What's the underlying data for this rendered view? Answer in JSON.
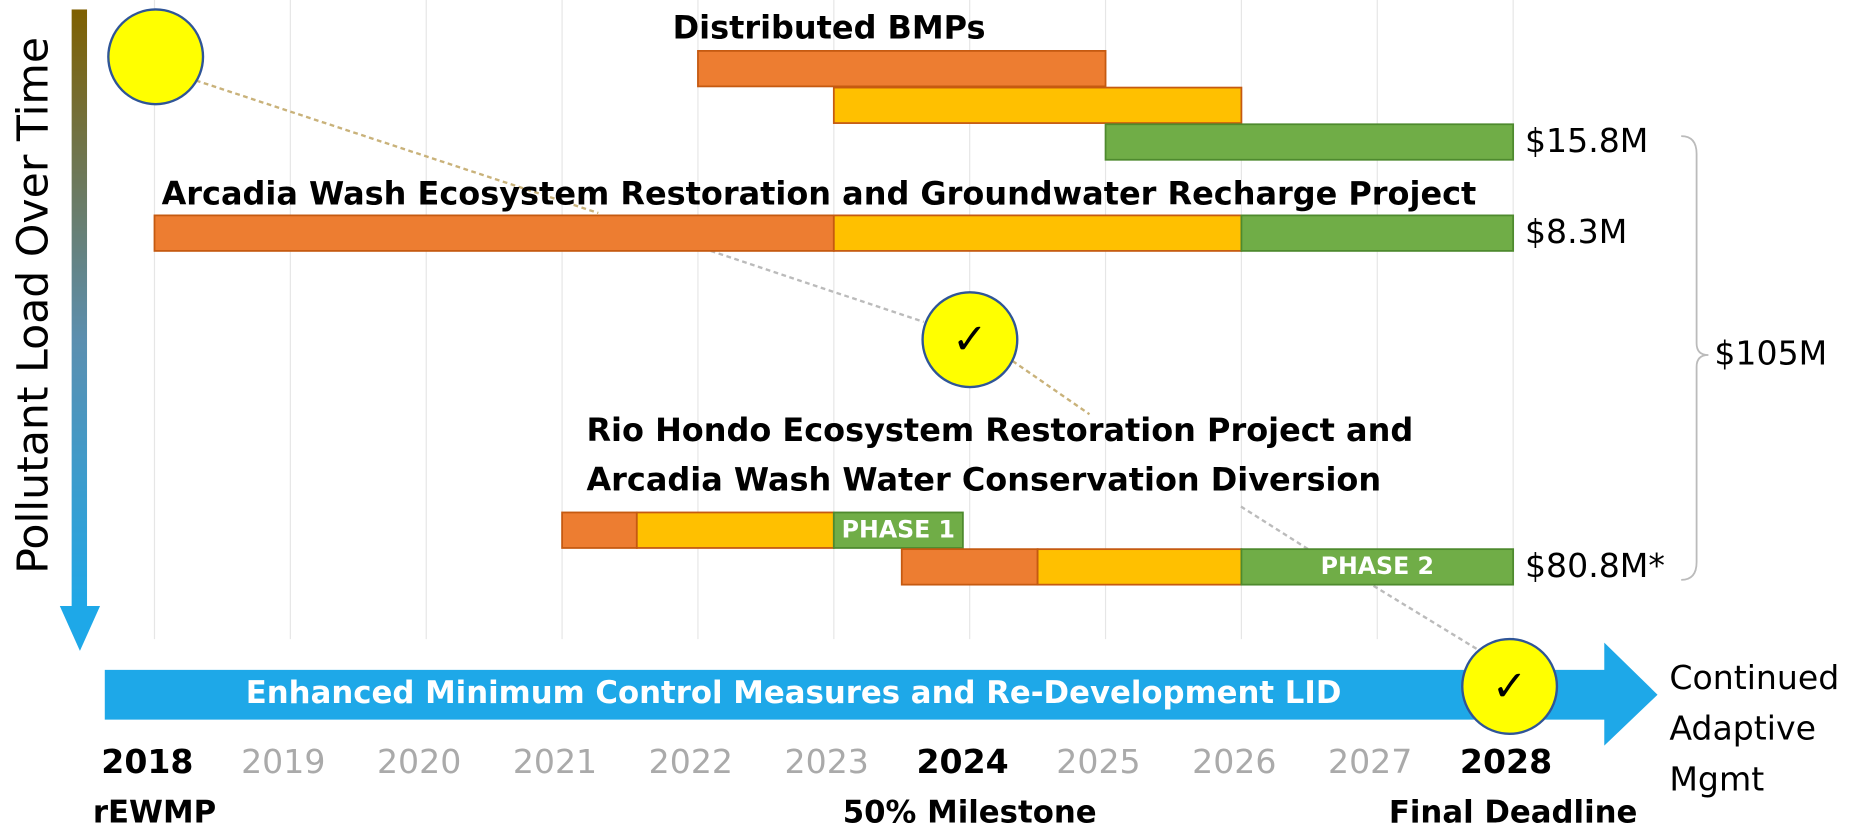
{
  "chart_data": {
    "type": "gantt",
    "y_axis_label": "Pollutant Load Over Time",
    "xlim": [
      2018,
      2028
    ],
    "xticks": [
      2018,
      2019,
      2020,
      2021,
      2022,
      2023,
      2024,
      2025,
      2026,
      2027,
      2028
    ],
    "milestones": [
      {
        "x": 2018,
        "label": "rEWMP"
      },
      {
        "x": 2024,
        "label": "50% Milestone"
      },
      {
        "x": 2028,
        "label": "Final Deadline"
      }
    ],
    "grid": true,
    "groups": [
      {
        "title": [
          "Distributed BMPs"
        ],
        "cost": "$15.8M",
        "rows": [
          [
            {
              "start": 2022,
              "end": 2025,
              "color": "#ED7D31"
            }
          ],
          [
            {
              "start": 2023,
              "end": 2026,
              "color": "#FFC000"
            }
          ],
          [
            {
              "start": 2025,
              "end": 2028,
              "color": "#70AD47"
            }
          ]
        ]
      },
      {
        "title": [
          "Arcadia Wash Ecosystem Restoration and Groundwater Recharge Project"
        ],
        "cost": "$8.3M",
        "rows": [
          [
            {
              "start": 2018,
              "end": 2023,
              "color": "#ED7D31"
            },
            {
              "start": 2023,
              "end": 2026,
              "color": "#FFC000"
            },
            {
              "start": 2026,
              "end": 2028,
              "color": "#70AD47"
            }
          ]
        ]
      },
      {
        "title": [
          "Rio Hondo Ecosystem Restoration Project and",
          "Arcadia Wash Water Conservation Diversion"
        ],
        "cost": "$80.8M*",
        "rows": [
          [
            {
              "start": 2021,
              "end": 2021.55,
              "color": "#ED7D31"
            },
            {
              "start": 2021.55,
              "end": 2023,
              "color": "#FFC000"
            },
            {
              "start": 2023,
              "end": 2023.95,
              "color": "#70AD47",
              "label": "PHASE 1"
            }
          ],
          [
            {
              "start": 2023.5,
              "end": 2024.5,
              "color": "#ED7D31"
            },
            {
              "start": 2024.5,
              "end": 2026,
              "color": "#FFC000"
            },
            {
              "start": 2026,
              "end": 2028,
              "color": "#70AD47",
              "label": "PHASE 2"
            }
          ]
        ]
      }
    ],
    "total_cost": "$105M",
    "baseline": "Enhanced Minimum Control Measures and Re-Development LID",
    "continuation": [
      "Continued",
      "Adaptive",
      "Mgmt"
    ]
  }
}
